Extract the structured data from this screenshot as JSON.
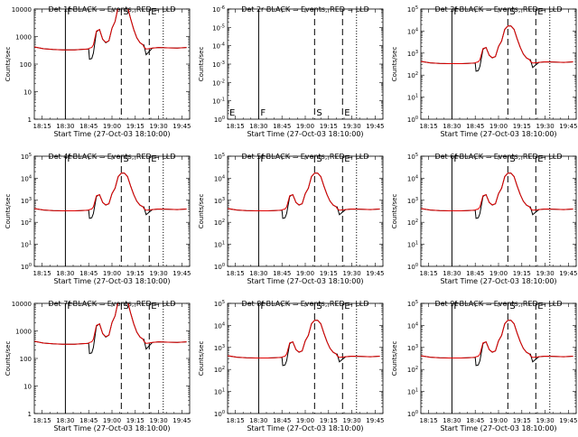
{
  "common": {
    "xlabel": "Start Time (27-Oct-03 18:10:00)",
    "ylabel": "Counts/sec",
    "x_ticks": [
      "18:15",
      "18:30",
      "18:45",
      "19:00",
      "19:15",
      "19:30",
      "19:45"
    ],
    "x_tick_minutes": [
      5,
      20,
      35,
      50,
      65,
      80,
      95
    ],
    "xlim_minutes": [
      0,
      100
    ],
    "ylim": [
      1,
      100000
    ],
    "y_scale": "log",
    "colors": {
      "events": "#000000",
      "lld": "#e00000",
      "markers": "#000000"
    }
  },
  "chart_data": [
    {
      "type": "line",
      "title": "Det 1f BLACK = Events, RED = LLD",
      "ytick_style": "plain",
      "ylim": [
        1,
        10000
      ],
      "y_ticks": [
        "1",
        "10",
        "100",
        "1000",
        "10000"
      ],
      "has_data": true,
      "markers": [
        {
          "label": "F",
          "x_minute": 20,
          "style": "solid"
        },
        {
          "label": "S",
          "x_minute": 56,
          "style": "dash"
        },
        {
          "label": "E",
          "x_minute": 74,
          "style": "dash"
        },
        {
          "label": "",
          "x_minute": 83,
          "style": "dot"
        }
      ]
    },
    {
      "type": "line",
      "title": "Det 2r BLACK = Events, RED = LLD",
      "ytick_style": "exp",
      "ylim": [
        1,
        1e-06
      ],
      "y_ticks": [
        "10^0",
        "10^-1",
        "10^-2",
        "10^-3",
        "10^-4",
        "10^-5",
        "10^-6"
      ],
      "has_data": false,
      "markers": [
        {
          "label": "F",
          "x_minute": 20,
          "style": "solid"
        },
        {
          "label": "S",
          "x_minute": 56,
          "style": "dash"
        },
        {
          "label": "E",
          "x_minute": 74,
          "style": "dash"
        },
        {
          "label": "",
          "x_minute": 83,
          "style": "dot"
        }
      ]
    },
    {
      "type": "line",
      "title": "Det 3f BLACK = Events, RED = LLD",
      "ytick_style": "exp",
      "ylim": [
        1,
        100000
      ],
      "y_ticks": [
        "10^0",
        "10^1",
        "10^2",
        "10^3",
        "10^4",
        "10^5"
      ],
      "has_data": true,
      "markers": [
        {
          "label": "F",
          "x_minute": 20,
          "style": "solid"
        },
        {
          "label": "S",
          "x_minute": 56,
          "style": "dash"
        },
        {
          "label": "E",
          "x_minute": 74,
          "style": "dash"
        },
        {
          "label": "",
          "x_minute": 83,
          "style": "dot"
        }
      ]
    },
    {
      "type": "line",
      "title": "Det 4f BLACK = Events, RED = LLD",
      "ytick_style": "exp",
      "ylim": [
        1,
        100000
      ],
      "y_ticks": [
        "10^0",
        "10^1",
        "10^2",
        "10^3",
        "10^4",
        "10^5"
      ],
      "has_data": true,
      "markers": [
        {
          "label": "F",
          "x_minute": 20,
          "style": "solid"
        },
        {
          "label": "S",
          "x_minute": 56,
          "style": "dash"
        },
        {
          "label": "E",
          "x_minute": 74,
          "style": "dash"
        },
        {
          "label": "",
          "x_minute": 83,
          "style": "dot"
        }
      ]
    },
    {
      "type": "line",
      "title": "Det 5f BLACK = Events, RED = LLD",
      "ytick_style": "exp",
      "ylim": [
        1,
        100000
      ],
      "y_ticks": [
        "10^0",
        "10^1",
        "10^2",
        "10^3",
        "10^4",
        "10^5"
      ],
      "has_data": true,
      "markers": [
        {
          "label": "F",
          "x_minute": 20,
          "style": "solid"
        },
        {
          "label": "S",
          "x_minute": 56,
          "style": "dash"
        },
        {
          "label": "E",
          "x_minute": 74,
          "style": "dash"
        },
        {
          "label": "",
          "x_minute": 83,
          "style": "dot"
        }
      ]
    },
    {
      "type": "line",
      "title": "Det 6f BLACK = Events, RED = LLD",
      "ytick_style": "exp",
      "ylim": [
        1,
        100000
      ],
      "y_ticks": [
        "10^0",
        "10^1",
        "10^2",
        "10^3",
        "10^4",
        "10^5"
      ],
      "has_data": true,
      "markers": [
        {
          "label": "F",
          "x_minute": 20,
          "style": "solid"
        },
        {
          "label": "S",
          "x_minute": 56,
          "style": "dash"
        },
        {
          "label": "E",
          "x_minute": 74,
          "style": "dash"
        },
        {
          "label": "",
          "x_minute": 83,
          "style": "dot"
        }
      ]
    },
    {
      "type": "line",
      "title": "Det 7f BLACK = Events, RED = LLD",
      "ytick_style": "plain",
      "ylim": [
        1,
        10000
      ],
      "y_ticks": [
        "1",
        "10",
        "100",
        "1000",
        "10000"
      ],
      "has_data": true,
      "markers": [
        {
          "label": "F",
          "x_minute": 20,
          "style": "solid"
        },
        {
          "label": "S",
          "x_minute": 56,
          "style": "dash"
        },
        {
          "label": "E",
          "x_minute": 74,
          "style": "dash"
        },
        {
          "label": "",
          "x_minute": 83,
          "style": "dot"
        }
      ]
    },
    {
      "type": "line",
      "title": "Det 8f BLACK = Events, RED = LLD",
      "ytick_style": "exp",
      "ylim": [
        1,
        100000
      ],
      "y_ticks": [
        "10^0",
        "10^1",
        "10^2",
        "10^3",
        "10^4",
        "10^5"
      ],
      "has_data": true,
      "markers": [
        {
          "label": "F",
          "x_minute": 20,
          "style": "solid"
        },
        {
          "label": "S",
          "x_minute": 56,
          "style": "dash"
        },
        {
          "label": "E",
          "x_minute": 74,
          "style": "dash"
        },
        {
          "label": "",
          "x_minute": 83,
          "style": "dot"
        }
      ]
    },
    {
      "type": "line",
      "title": "Det 9f BLACK = Events, RED = LLD",
      "ytick_style": "exp",
      "ylim": [
        1,
        100000
      ],
      "y_ticks": [
        "10^0",
        "10^1",
        "10^2",
        "10^3",
        "10^4",
        "10^5"
      ],
      "has_data": true,
      "markers": [
        {
          "label": "F",
          "x_minute": 20,
          "style": "solid"
        },
        {
          "label": "S",
          "x_minute": 56,
          "style": "dash"
        },
        {
          "label": "E",
          "x_minute": 74,
          "style": "dash"
        },
        {
          "label": "",
          "x_minute": 83,
          "style": "dot"
        }
      ]
    }
  ],
  "series": {
    "events": {
      "name": "Events",
      "x_minutes": [
        0,
        6,
        12,
        18,
        22,
        26,
        30,
        34,
        35,
        35.5,
        37,
        38,
        40,
        42,
        44,
        46,
        48,
        50,
        52,
        54,
        56,
        58,
        60,
        62,
        64,
        66,
        68,
        70,
        70.5,
        72,
        76,
        80,
        86,
        92,
        98
      ],
      "counts": [
        420,
        360,
        340,
        330,
        330,
        330,
        340,
        350,
        350,
        150,
        160,
        250,
        1500,
        1800,
        800,
        600,
        700,
        2000,
        3500,
        12000,
        17000,
        17000,
        12000,
        4500,
        1800,
        900,
        600,
        500,
        500,
        220,
        380,
        400,
        390,
        380,
        400
      ]
    },
    "lld": {
      "name": "LLD",
      "x_minutes": [
        0,
        6,
        12,
        18,
        22,
        26,
        30,
        34,
        35,
        35.5,
        37,
        38,
        40,
        42,
        44,
        46,
        48,
        50,
        52,
        54,
        56,
        58,
        60,
        62,
        64,
        66,
        68,
        70,
        70.5,
        72,
        76,
        80,
        86,
        92,
        98
      ],
      "counts": [
        420,
        360,
        340,
        330,
        330,
        330,
        340,
        350,
        360,
        380,
        400,
        500,
        1600,
        1800,
        800,
        620,
        700,
        2000,
        3500,
        12000,
        17000,
        17000,
        12000,
        4500,
        1800,
        900,
        600,
        500,
        420,
        350,
        380,
        400,
        390,
        380,
        400
      ]
    }
  }
}
